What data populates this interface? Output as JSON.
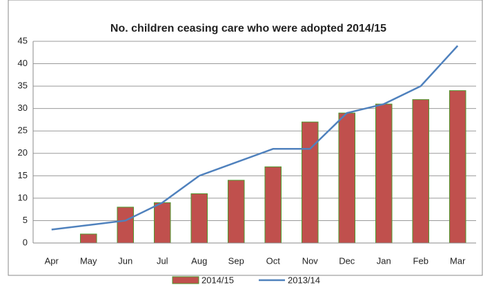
{
  "chart_data": {
    "type": "bar",
    "title": "No. children ceasing care who were adopted 2014/15",
    "categories": [
      "Apr",
      "May",
      "Jun",
      "Jul",
      "Aug",
      "Sep",
      "Oct",
      "Nov",
      "Dec",
      "Jan",
      "Feb",
      "Mar"
    ],
    "series": [
      {
        "name": "2014/15",
        "type": "bar",
        "color": "#c0504d",
        "values": [
          0,
          2,
          8,
          9,
          11,
          14,
          17,
          27,
          29,
          31,
          32,
          34
        ]
      },
      {
        "name": "2013/14",
        "type": "line",
        "color": "#4f81bd",
        "values": [
          3,
          4,
          5,
          9,
          15,
          18,
          21,
          21,
          29,
          31,
          35,
          44
        ]
      }
    ],
    "ylim": [
      0,
      45
    ],
    "yticks": [
      0,
      5,
      10,
      15,
      20,
      25,
      30,
      35,
      40,
      45
    ],
    "grid": true,
    "legend": "bottom"
  }
}
